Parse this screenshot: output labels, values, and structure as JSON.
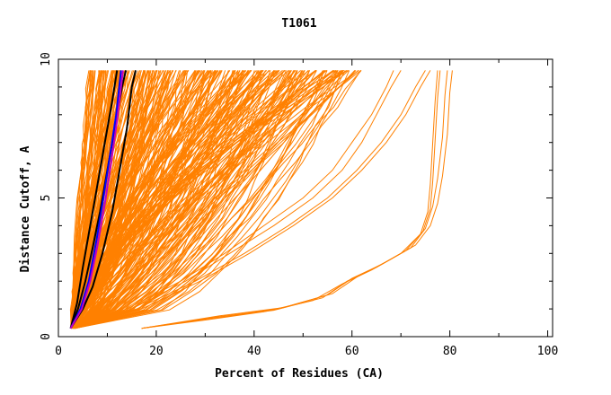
{
  "chart_data": {
    "type": "line",
    "title": "T1061",
    "xlabel": "Percent of Residues (CA)",
    "ylabel": "Distance Cutoff, A",
    "xlim": [
      0,
      101
    ],
    "ylim": [
      0,
      10
    ],
    "x_ticks": [
      0,
      20,
      40,
      60,
      80,
      100
    ],
    "y_ticks": [
      0,
      5,
      10
    ],
    "x_tick_labels": [
      "0",
      "20",
      "40",
      "60",
      "80",
      "100"
    ],
    "y_tick_labels": [
      "0",
      "5",
      "10"
    ],
    "grid": false,
    "colors": {
      "orange": "#ff8000",
      "black": "#000000",
      "blue": "#0000ff",
      "purple": "#c000c0"
    },
    "orange_family": {
      "description_count": 300,
      "start_y": 0.3,
      "end_y": 9.6,
      "start_x_range": [
        2.5,
        3.5
      ],
      "end_x_range": [
        6,
        62
      ],
      "curvature_range": [
        0.35,
        1.6
      ]
    },
    "highlight_series": [
      {
        "color": "black",
        "points": [
          [
            2.5,
            0.3
          ],
          [
            4,
            1.0
          ],
          [
            5.5,
            2.0
          ],
          [
            7,
            3.2
          ],
          [
            8.5,
            4.5
          ],
          [
            10,
            6.0
          ],
          [
            11.5,
            7.5
          ],
          [
            13,
            9.0
          ],
          [
            13.8,
            9.6
          ]
        ]
      },
      {
        "color": "black",
        "points": [
          [
            2.5,
            0.3
          ],
          [
            5,
            1.0
          ],
          [
            7,
            1.8
          ],
          [
            9,
            3.0
          ],
          [
            11,
            4.5
          ],
          [
            12.5,
            6.0
          ],
          [
            14,
            7.5
          ],
          [
            15,
            9.0
          ],
          [
            15.8,
            9.6
          ]
        ]
      },
      {
        "color": "black",
        "points": [
          [
            2.5,
            0.3
          ],
          [
            3.8,
            1.2
          ],
          [
            5,
            2.5
          ],
          [
            6.5,
            4.0
          ],
          [
            8,
            5.5
          ],
          [
            9.5,
            7.0
          ],
          [
            11,
            8.5
          ],
          [
            12,
            9.6
          ]
        ]
      },
      {
        "color": "blue",
        "points": [
          [
            2.5,
            0.3
          ],
          [
            4.5,
            1.0
          ],
          [
            6.2,
            2.0
          ],
          [
            7.8,
            3.5
          ],
          [
            9.2,
            5.0
          ],
          [
            10.5,
            6.5
          ],
          [
            11.8,
            8.0
          ],
          [
            12.8,
            9.6
          ]
        ]
      },
      {
        "color": "purple",
        "points": [
          [
            2.5,
            0.3
          ],
          [
            4.8,
            1.0
          ],
          [
            6.5,
            2.0
          ],
          [
            8,
            3.3
          ],
          [
            9.5,
            4.8
          ],
          [
            10.8,
            6.3
          ],
          [
            12,
            7.8
          ],
          [
            13.2,
            9.6
          ]
        ]
      }
    ],
    "outlier_series": [
      {
        "color": "orange",
        "points": [
          [
            3,
            0.3
          ],
          [
            14,
            1.0
          ],
          [
            25,
            2.0
          ],
          [
            34,
            3.0
          ],
          [
            42,
            4.0
          ],
          [
            50,
            5.0
          ],
          [
            56,
            6.0
          ],
          [
            60,
            7.0
          ],
          [
            64,
            8.0
          ],
          [
            67,
            9.0
          ],
          [
            68.5,
            9.6
          ]
        ]
      },
      {
        "color": "orange",
        "points": [
          [
            3,
            0.3
          ],
          [
            15,
            1.0
          ],
          [
            26,
            2.0
          ],
          [
            35,
            3.0
          ],
          [
            44,
            4.0
          ],
          [
            52,
            5.0
          ],
          [
            58,
            6.0
          ],
          [
            62,
            7.0
          ],
          [
            65,
            8.0
          ],
          [
            68,
            9.0
          ],
          [
            70,
            9.6
          ]
        ]
      },
      {
        "color": "orange",
        "points": [
          [
            3,
            0.3
          ],
          [
            16,
            1.0
          ],
          [
            28,
            2.0
          ],
          [
            38,
            3.0
          ],
          [
            47,
            4.0
          ],
          [
            55,
            5.0
          ],
          [
            61,
            6.0
          ],
          [
            66,
            7.0
          ],
          [
            70,
            8.0
          ],
          [
            73,
            9.0
          ],
          [
            75,
            9.6
          ]
        ]
      },
      {
        "color": "orange",
        "points": [
          [
            3,
            0.3
          ],
          [
            17,
            1.0
          ],
          [
            29,
            2.0
          ],
          [
            39,
            3.0
          ],
          [
            48,
            4.0
          ],
          [
            56,
            5.0
          ],
          [
            62,
            6.0
          ],
          [
            67,
            7.0
          ],
          [
            71,
            8.0
          ],
          [
            74,
            9.0
          ],
          [
            76,
            9.6
          ]
        ]
      },
      {
        "color": "orange",
        "points": [
          [
            17,
            0.3
          ],
          [
            30,
            0.6
          ],
          [
            42,
            0.9
          ],
          [
            52,
            1.3
          ],
          [
            58,
            1.9
          ],
          [
            64,
            2.4
          ],
          [
            70,
            3.0
          ],
          [
            74,
            3.7
          ],
          [
            75.5,
            4.5
          ],
          [
            76,
            5.5
          ],
          [
            76.5,
            7.0
          ],
          [
            77,
            8.5
          ],
          [
            77.5,
            9.6
          ]
        ]
      },
      {
        "color": "orange",
        "points": [
          [
            17,
            0.3
          ],
          [
            31,
            0.65
          ],
          [
            44,
            0.95
          ],
          [
            54,
            1.4
          ],
          [
            59,
            2.0
          ],
          [
            65,
            2.5
          ],
          [
            71,
            3.1
          ],
          [
            74.5,
            3.8
          ],
          [
            76,
            4.6
          ],
          [
            76.5,
            5.6
          ],
          [
            77,
            7.1
          ],
          [
            77.5,
            8.6
          ],
          [
            78,
            9.6
          ]
        ]
      },
      {
        "color": "orange",
        "points": [
          [
            17,
            0.3
          ],
          [
            32,
            0.7
          ],
          [
            45,
            1.0
          ],
          [
            55,
            1.5
          ],
          [
            60,
            2.1
          ],
          [
            66,
            2.6
          ],
          [
            72,
            3.2
          ],
          [
            75,
            3.9
          ],
          [
            76.5,
            4.7
          ],
          [
            77.5,
            5.7
          ],
          [
            78.5,
            7.2
          ],
          [
            79,
            8.7
          ],
          [
            79.5,
            9.6
          ]
        ]
      },
      {
        "color": "orange",
        "points": [
          [
            17,
            0.3
          ],
          [
            33,
            0.75
          ],
          [
            46,
            1.05
          ],
          [
            56,
            1.55
          ],
          [
            61,
            2.15
          ],
          [
            67,
            2.7
          ],
          [
            73,
            3.3
          ],
          [
            76,
            4.0
          ],
          [
            77.5,
            4.8
          ],
          [
            78.5,
            5.8
          ],
          [
            79.5,
            7.3
          ],
          [
            80,
            8.8
          ],
          [
            80.5,
            9.6
          ]
        ]
      }
    ]
  }
}
